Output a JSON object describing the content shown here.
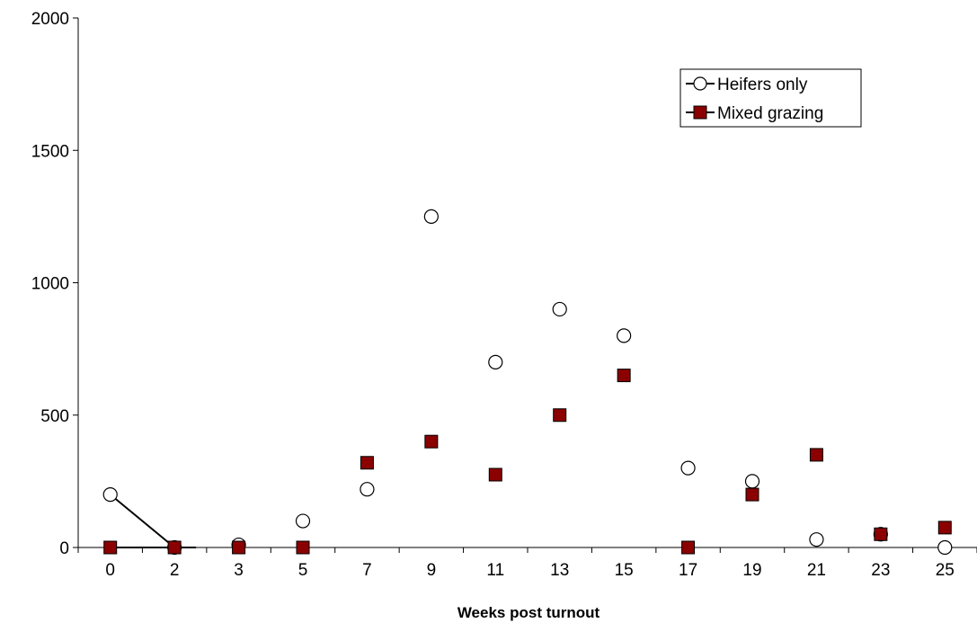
{
  "chart_data": {
    "type": "scatter",
    "title": "",
    "xlabel": "Weeks post turnout",
    "ylabel": "",
    "categories": [
      "0",
      "2",
      "3",
      "5",
      "7",
      "9",
      "11",
      "13",
      "15",
      "17",
      "19",
      "21",
      "23",
      "25"
    ],
    "yticks": [
      "0",
      "500",
      "1000",
      "1500",
      "2000"
    ],
    "ylim": [
      0,
      2000
    ],
    "grid": false,
    "legend": "top-right",
    "series": [
      {
        "name": "Heifers only",
        "marker": "open-circle",
        "color": "#000000",
        "values": [
          200,
          0,
          10,
          100,
          220,
          1250,
          700,
          900,
          800,
          300,
          250,
          30,
          50,
          0
        ]
      },
      {
        "name": "Mixed grazing",
        "marker": "filled-square",
        "color": "#8b0000",
        "values": [
          0,
          0,
          0,
          0,
          320,
          400,
          275,
          500,
          650,
          0,
          200,
          350,
          50,
          75
        ]
      }
    ]
  }
}
